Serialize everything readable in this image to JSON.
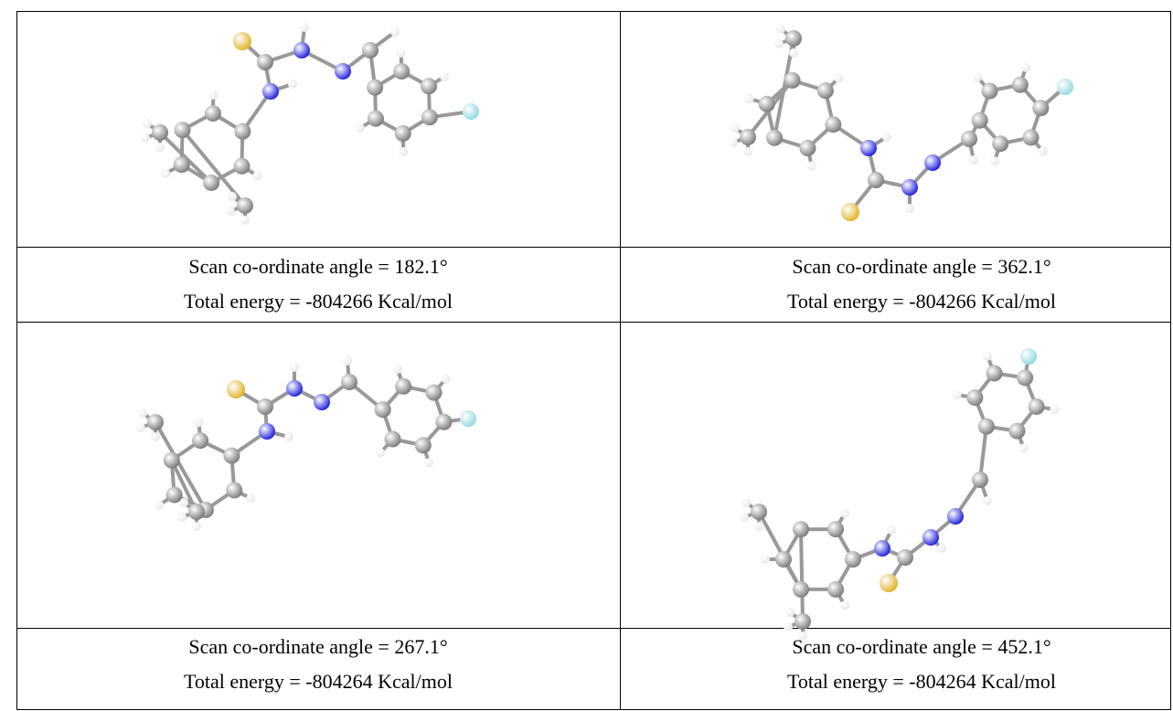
{
  "table": {
    "cells": [
      {
        "angle": "Scan co-ordinate angle = 182.1°",
        "energy": "Total energy = -804266 Kcal/mol"
      },
      {
        "angle": "Scan co-ordinate angle = 362.1°",
        "energy": "Total energy = -804266 Kcal/mol"
      },
      {
        "angle": "Scan co-ordinate angle = 267.1°",
        "energy": "Total energy = -804264 Kcal/mol"
      },
      {
        "angle": "Scan co-ordinate angle = 452.1°",
        "energy": "Total energy = -804264 Kcal/mol"
      }
    ]
  }
}
